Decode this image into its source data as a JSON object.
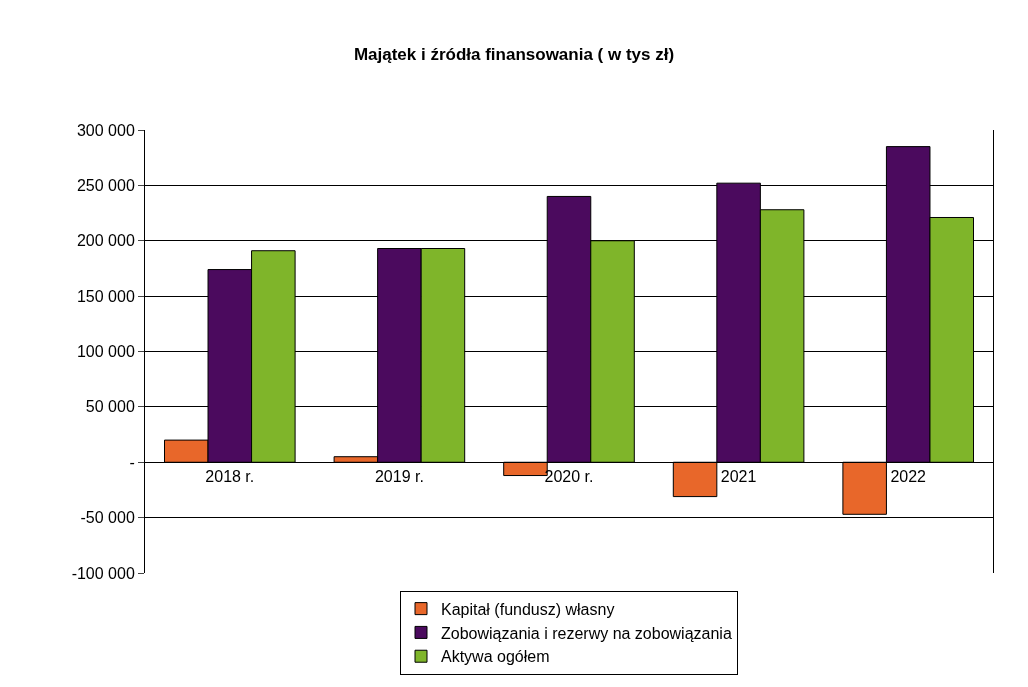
{
  "chart_data": {
    "type": "bar",
    "title": "Majątek i źródła finansowania ( w tys zł)",
    "categories": [
      "2018 r.",
      "2019 r.",
      "2020 r.",
      "2021",
      "2022"
    ],
    "series": [
      {
        "name": "Kapitał (fundusz) własny",
        "color": "#e8672a",
        "values": [
          20000,
          5000,
          -12000,
          -31000,
          -47000
        ]
      },
      {
        "name": "Zobowiązania i rezerwy na zobowiązania",
        "color": "#4b0a5e",
        "values": [
          174000,
          193000,
          240000,
          252000,
          285000
        ]
      },
      {
        "name": "Aktywa ogółem",
        "color": "#7fb52a",
        "values": [
          191000,
          193000,
          200000,
          228000,
          221000
        ]
      }
    ],
    "ylim": [
      -100000,
      300000
    ],
    "yticks": [
      {
        "value": -100000,
        "label": "-100 000"
      },
      {
        "value": -50000,
        "label": "-50 000"
      },
      {
        "value": 0,
        "label": "-"
      },
      {
        "value": 50000,
        "label": "50 000"
      },
      {
        "value": 100000,
        "label": "100 000"
      },
      {
        "value": 150000,
        "label": "150 000"
      },
      {
        "value": 200000,
        "label": "200 000"
      },
      {
        "value": 250000,
        "label": "250 000"
      },
      {
        "value": 300000,
        "label": "300 000"
      }
    ],
    "grid": "y",
    "legend": "bottom"
  }
}
